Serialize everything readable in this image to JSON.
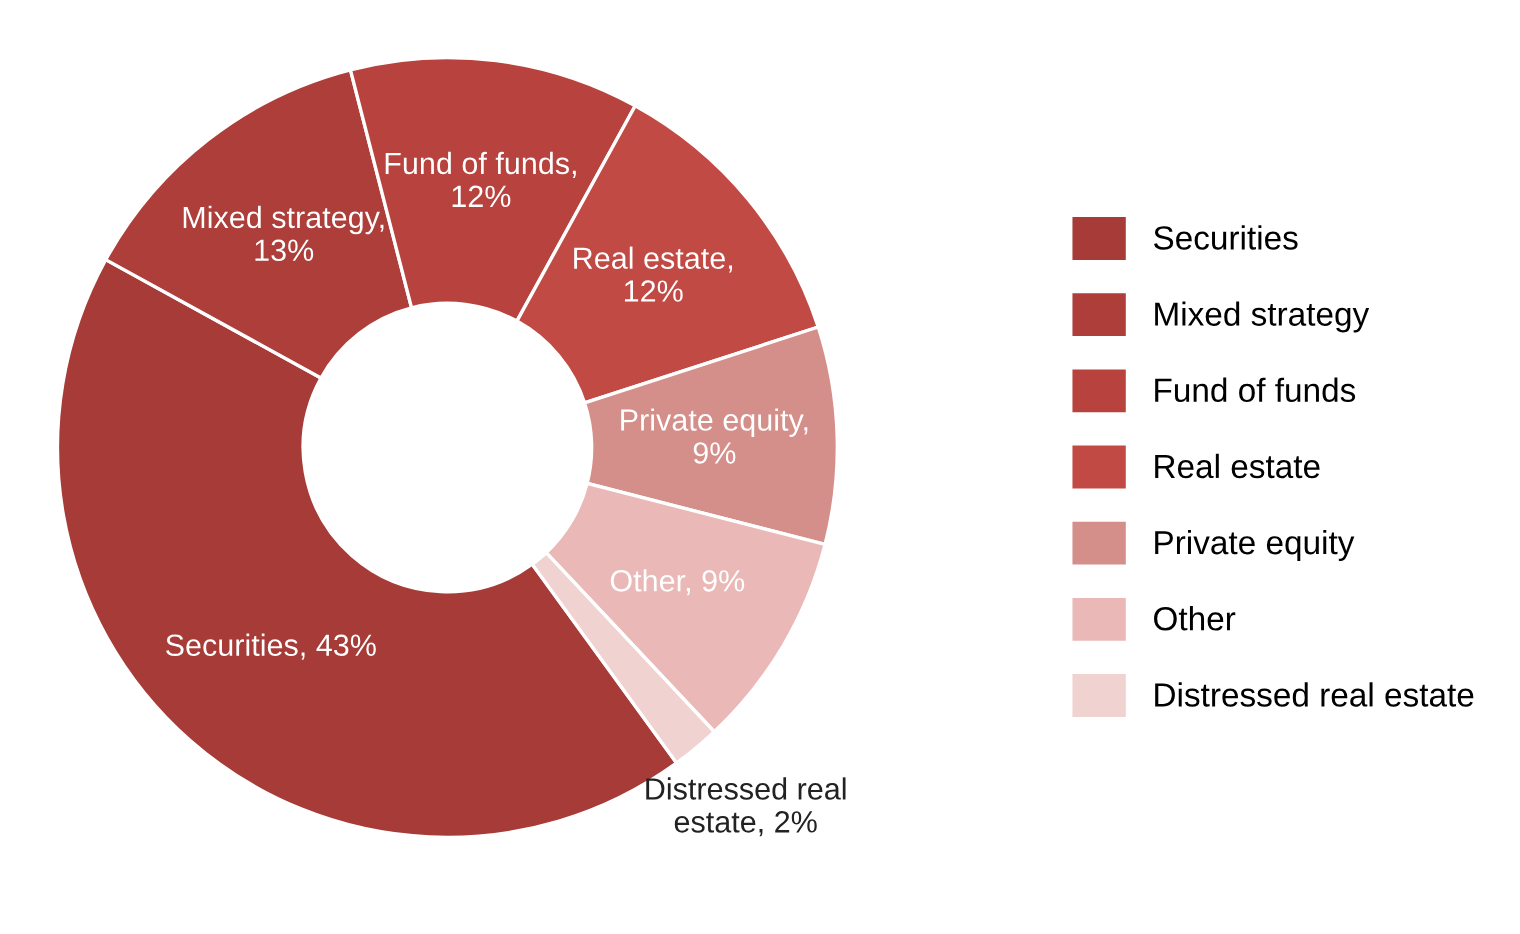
{
  "chart_data": {
    "type": "donut",
    "categories": [
      "Securities",
      "Mixed strategy",
      "Fund of funds",
      "Real estate",
      "Private equity",
      "Other",
      "Distressed real estate"
    ],
    "values": [
      43,
      13,
      12,
      12,
      9,
      9,
      2
    ],
    "colors": [
      "#a63b37",
      "#ad3e3a",
      "#b8433e",
      "#c24a44",
      "#d48f8b",
      "#eab9b7",
      "#f0d2d1"
    ],
    "value_labels": [
      "Securities, 43%",
      "Mixed strategy,\n13%",
      "Fund of funds,\n12%",
      "Real estate,\n12%",
      "Private equity,\n9%",
      "Other, 9%",
      "Distressed real\nestate, 2%"
    ],
    "legend": "right"
  }
}
